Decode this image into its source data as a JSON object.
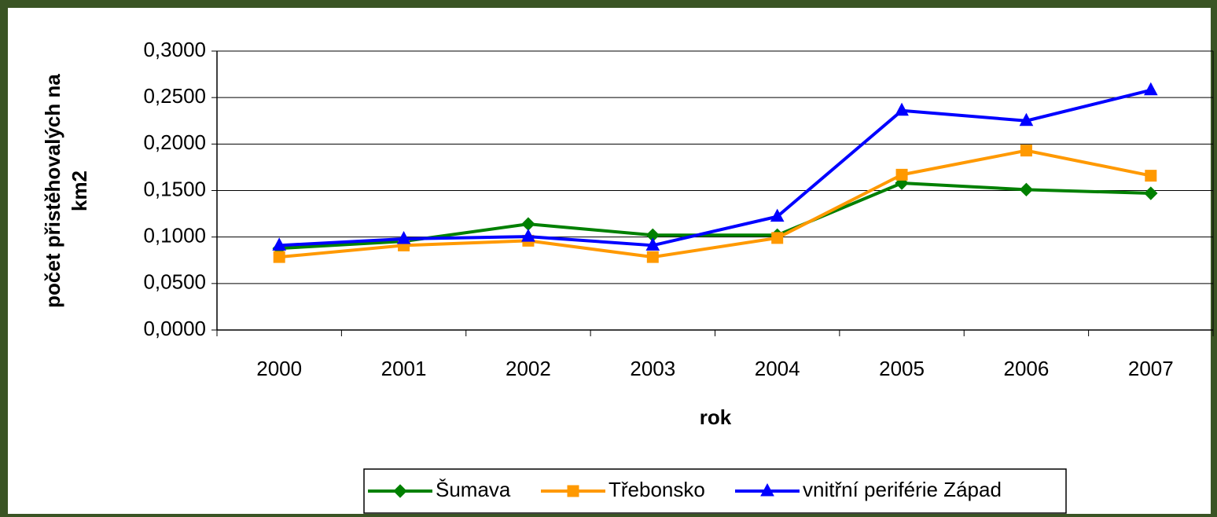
{
  "chart_data": {
    "type": "line",
    "xlabel": "rok",
    "ylabel": [
      "počet přistěhovalých na",
      "km2"
    ],
    "categories": [
      "2000",
      "2001",
      "2002",
      "2003",
      "2004",
      "2005",
      "2006",
      "2007"
    ],
    "series": [
      {
        "name": "Šumava",
        "color": "#008000",
        "marker": "diamond",
        "values": [
          0.0878,
          0.0954,
          0.114,
          0.102,
          0.102,
          0.158,
          0.151,
          0.147
        ]
      },
      {
        "name": "Třebonsko",
        "color": "#ff9900",
        "marker": "square",
        "values": [
          0.0785,
          0.091,
          0.096,
          0.0785,
          0.099,
          0.167,
          0.193,
          0.166
        ]
      },
      {
        "name": "vnitřní periférie Západ",
        "color": "#0000ff",
        "marker": "triangle",
        "values": [
          0.091,
          0.098,
          0.1005,
          0.091,
          0.122,
          0.236,
          0.225,
          0.258
        ]
      }
    ],
    "ylim": [
      0,
      0.3
    ],
    "yticks": [
      {
        "value": 0,
        "label": "0,0000"
      },
      {
        "value": 0.05,
        "label": "0,0500"
      },
      {
        "value": 0.1,
        "label": "0,1000"
      },
      {
        "value": 0.15,
        "label": "0,1500"
      },
      {
        "value": 0.2,
        "label": "0,2000"
      },
      {
        "value": 0.25,
        "label": "0,2500"
      },
      {
        "value": 0.3,
        "label": "0,3000"
      }
    ],
    "grid": true,
    "legend": "bottom"
  }
}
